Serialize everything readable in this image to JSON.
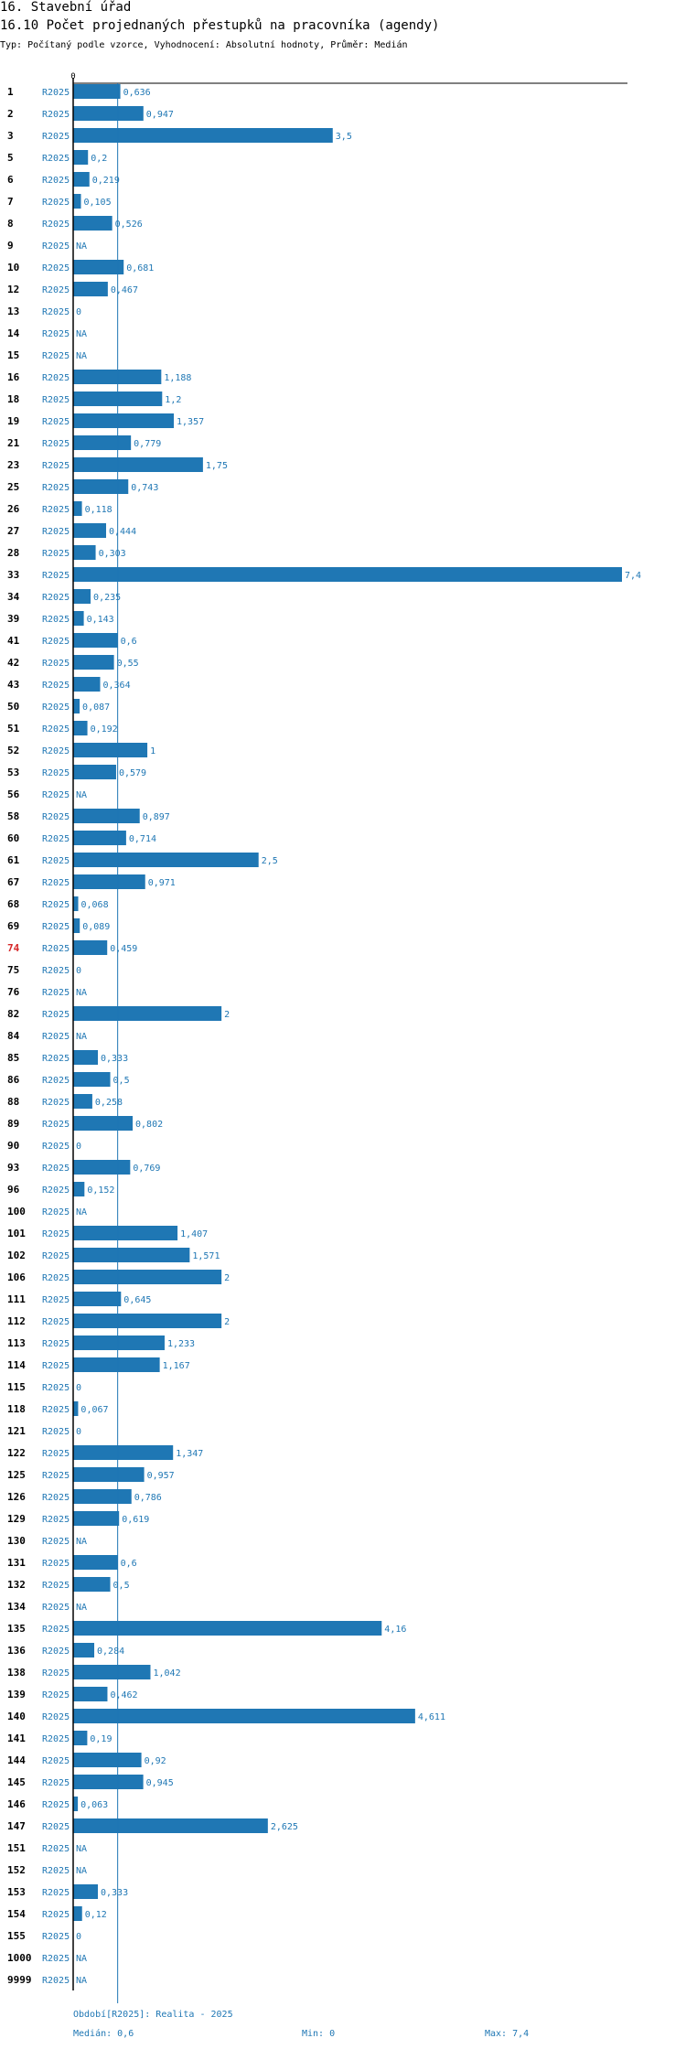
{
  "header": {
    "title": "16. Stavební úřad",
    "subtitle": "16.10 Počet projednaných přestupků na pracovníka (agendy)",
    "description": "Typ: Počítaný podle vzorce, Vyhodnocení: Absolutní hodnoty, Průměr: Medián"
  },
  "colors": {
    "bar": "#1f77b4",
    "text_blue": "#1f77b4",
    "highlight": "#d62728",
    "axis": "#000000"
  },
  "chart_data": {
    "type": "bar",
    "orientation": "horizontal",
    "axis_zero_label": "0",
    "xlim": [
      0,
      7.4
    ],
    "median": 0.6,
    "period": "R2025",
    "highlight_id": "74",
    "rows": [
      {
        "id": "1",
        "value": 0.636,
        "label": "0,636"
      },
      {
        "id": "2",
        "value": 0.947,
        "label": "0,947"
      },
      {
        "id": "3",
        "value": 3.5,
        "label": "3,5"
      },
      {
        "id": "5",
        "value": 0.2,
        "label": "0,2"
      },
      {
        "id": "6",
        "value": 0.219,
        "label": "0,219"
      },
      {
        "id": "7",
        "value": 0.105,
        "label": "0,105"
      },
      {
        "id": "8",
        "value": 0.526,
        "label": "0,526"
      },
      {
        "id": "9",
        "value": null,
        "label": "NA"
      },
      {
        "id": "10",
        "value": 0.681,
        "label": "0,681"
      },
      {
        "id": "12",
        "value": 0.467,
        "label": "0,467"
      },
      {
        "id": "13",
        "value": 0,
        "label": "0"
      },
      {
        "id": "14",
        "value": null,
        "label": "NA"
      },
      {
        "id": "15",
        "value": null,
        "label": "NA"
      },
      {
        "id": "16",
        "value": 1.188,
        "label": "1,188"
      },
      {
        "id": "18",
        "value": 1.2,
        "label": "1,2"
      },
      {
        "id": "19",
        "value": 1.357,
        "label": "1,357"
      },
      {
        "id": "21",
        "value": 0.779,
        "label": "0,779"
      },
      {
        "id": "23",
        "value": 1.75,
        "label": "1,75"
      },
      {
        "id": "25",
        "value": 0.743,
        "label": "0,743"
      },
      {
        "id": "26",
        "value": 0.118,
        "label": "0,118"
      },
      {
        "id": "27",
        "value": 0.444,
        "label": "0,444"
      },
      {
        "id": "28",
        "value": 0.303,
        "label": "0,303"
      },
      {
        "id": "33",
        "value": 7.4,
        "label": "7,4"
      },
      {
        "id": "34",
        "value": 0.235,
        "label": "0,235"
      },
      {
        "id": "39",
        "value": 0.143,
        "label": "0,143"
      },
      {
        "id": "41",
        "value": 0.6,
        "label": "0,6"
      },
      {
        "id": "42",
        "value": 0.55,
        "label": "0,55"
      },
      {
        "id": "43",
        "value": 0.364,
        "label": "0,364"
      },
      {
        "id": "50",
        "value": 0.087,
        "label": "0,087"
      },
      {
        "id": "51",
        "value": 0.192,
        "label": "0,192"
      },
      {
        "id": "52",
        "value": 1,
        "label": "1"
      },
      {
        "id": "53",
        "value": 0.579,
        "label": "0,579"
      },
      {
        "id": "56",
        "value": null,
        "label": "NA"
      },
      {
        "id": "58",
        "value": 0.897,
        "label": "0,897"
      },
      {
        "id": "60",
        "value": 0.714,
        "label": "0,714"
      },
      {
        "id": "61",
        "value": 2.5,
        "label": "2,5"
      },
      {
        "id": "67",
        "value": 0.971,
        "label": "0,971"
      },
      {
        "id": "68",
        "value": 0.068,
        "label": "0,068"
      },
      {
        "id": "69",
        "value": 0.089,
        "label": "0,089"
      },
      {
        "id": "74",
        "value": 0.459,
        "label": "0,459"
      },
      {
        "id": "75",
        "value": 0,
        "label": "0"
      },
      {
        "id": "76",
        "value": null,
        "label": "NA"
      },
      {
        "id": "82",
        "value": 2,
        "label": "2"
      },
      {
        "id": "84",
        "value": null,
        "label": "NA"
      },
      {
        "id": "85",
        "value": 0.333,
        "label": "0,333"
      },
      {
        "id": "86",
        "value": 0.5,
        "label": "0,5"
      },
      {
        "id": "88",
        "value": 0.258,
        "label": "0,258"
      },
      {
        "id": "89",
        "value": 0.802,
        "label": "0,802"
      },
      {
        "id": "90",
        "value": 0,
        "label": "0"
      },
      {
        "id": "93",
        "value": 0.769,
        "label": "0,769"
      },
      {
        "id": "96",
        "value": 0.152,
        "label": "0,152"
      },
      {
        "id": "100",
        "value": null,
        "label": "NA"
      },
      {
        "id": "101",
        "value": 1.407,
        "label": "1,407"
      },
      {
        "id": "102",
        "value": 1.571,
        "label": "1,571"
      },
      {
        "id": "106",
        "value": 2,
        "label": "2"
      },
      {
        "id": "111",
        "value": 0.645,
        "label": "0,645"
      },
      {
        "id": "112",
        "value": 2,
        "label": "2"
      },
      {
        "id": "113",
        "value": 1.233,
        "label": "1,233"
      },
      {
        "id": "114",
        "value": 1.167,
        "label": "1,167"
      },
      {
        "id": "115",
        "value": 0,
        "label": "0"
      },
      {
        "id": "118",
        "value": 0.067,
        "label": "0,067"
      },
      {
        "id": "121",
        "value": 0,
        "label": "0"
      },
      {
        "id": "122",
        "value": 1.347,
        "label": "1,347"
      },
      {
        "id": "125",
        "value": 0.957,
        "label": "0,957"
      },
      {
        "id": "126",
        "value": 0.786,
        "label": "0,786"
      },
      {
        "id": "129",
        "value": 0.619,
        "label": "0,619"
      },
      {
        "id": "130",
        "value": null,
        "label": "NA"
      },
      {
        "id": "131",
        "value": 0.6,
        "label": "0,6"
      },
      {
        "id": "132",
        "value": 0.5,
        "label": "0,5"
      },
      {
        "id": "134",
        "value": null,
        "label": "NA"
      },
      {
        "id": "135",
        "value": 4.16,
        "label": "4,16"
      },
      {
        "id": "136",
        "value": 0.284,
        "label": "0,284"
      },
      {
        "id": "138",
        "value": 1.042,
        "label": "1,042"
      },
      {
        "id": "139",
        "value": 0.462,
        "label": "0,462"
      },
      {
        "id": "140",
        "value": 4.611,
        "label": "4,611"
      },
      {
        "id": "141",
        "value": 0.19,
        "label": "0,19"
      },
      {
        "id": "144",
        "value": 0.92,
        "label": "0,92"
      },
      {
        "id": "145",
        "value": 0.945,
        "label": "0,945"
      },
      {
        "id": "146",
        "value": 0.063,
        "label": "0,063"
      },
      {
        "id": "147",
        "value": 2.625,
        "label": "2,625"
      },
      {
        "id": "151",
        "value": null,
        "label": "NA"
      },
      {
        "id": "152",
        "value": null,
        "label": "NA"
      },
      {
        "id": "153",
        "value": 0.333,
        "label": "0,333"
      },
      {
        "id": "154",
        "value": 0.12,
        "label": "0,12"
      },
      {
        "id": "155",
        "value": 0,
        "label": "0"
      },
      {
        "id": "1000",
        "value": null,
        "label": "NA"
      },
      {
        "id": "9999",
        "value": null,
        "label": "NA"
      }
    ]
  },
  "footer": {
    "period_note": "Období[R2025]: Realita - 2025",
    "median_label": "Medián: 0,6",
    "min_label": "Min: 0",
    "max_label": "Max: 7,4"
  }
}
